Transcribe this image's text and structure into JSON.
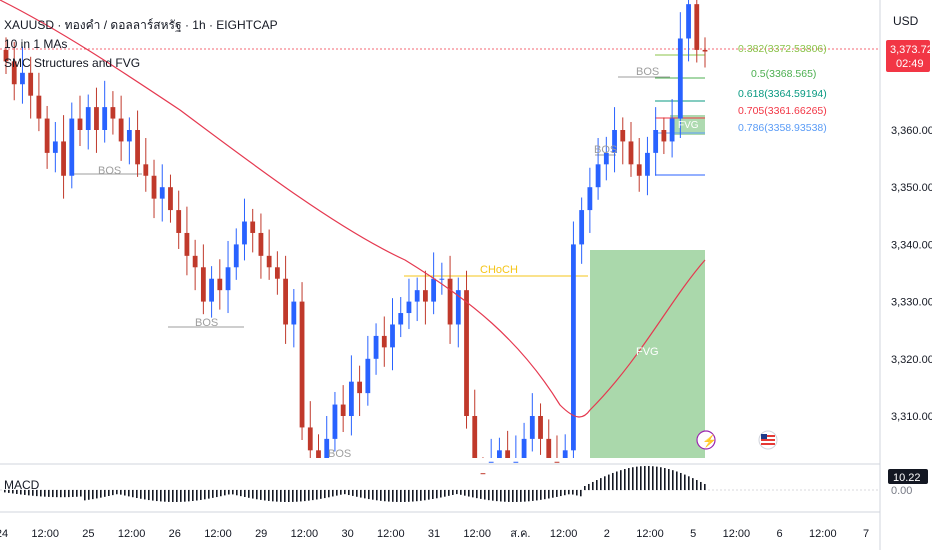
{
  "header": {
    "symbol_line": "XAUUSD · ทองคำ / ดอลลาร์สหรัฐ · 1h · EIGHTCAP",
    "indicator_1": "10 in 1 MAs",
    "indicator_2": "SMC Structures and FVG"
  },
  "price_axis": {
    "currency": "USD",
    "ticks": [
      "3,360.00",
      "3,350.00",
      "3,340.00",
      "3,330.00",
      "3,320.00",
      "3,310.00"
    ],
    "tick_values": [
      3360,
      3350,
      3340,
      3330,
      3320,
      3310
    ],
    "current_price": "3,373.72",
    "countdown": "02:49"
  },
  "time_axis": {
    "ticks": [
      "24",
      "12:00",
      "25",
      "12:00",
      "26",
      "12:00",
      "29",
      "12:00",
      "30",
      "12:00",
      "31",
      "12:00",
      "ส.ค.",
      "12:00",
      "2",
      "12:00",
      "5",
      "12:00",
      "6",
      "12:00",
      "7"
    ]
  },
  "macd": {
    "label": "MACD",
    "value": "10.22",
    "zero": "0.00"
  },
  "annotations": {
    "bos": "BOS",
    "choch": "CHoCH",
    "fvg": "FVG"
  },
  "fib_levels": [
    {
      "ratio": "0.382",
      "price": "3372.53806",
      "color": "#8bc34a"
    },
    {
      "ratio": "0.5",
      "price": "3368.565",
      "color": "#4caf50"
    },
    {
      "ratio": "0.618",
      "price": "3364.59194",
      "color": "#089981"
    },
    {
      "ratio": "0.705",
      "price": "3361.66265",
      "color": "#f23645"
    },
    {
      "ratio": "0.786",
      "price": "3358.93538",
      "color": "#5b9cf6"
    }
  ],
  "colors": {
    "up": "#2962ff",
    "down": "#c0392b",
    "ma": "#e53950",
    "fvg": "#a5d6a7",
    "choch": "#f5c518",
    "bos": "#9e9e9e",
    "price_badge": "#f23645"
  },
  "chart_data": {
    "type": "candlestick",
    "timeframe": "1h",
    "ylim": [
      3305,
      3378
    ],
    "y_ticks": [
      3310,
      3320,
      3330,
      3340,
      3350,
      3360
    ],
    "current_price": 3373.72,
    "candles_close": [
      3372,
      3368,
      3370,
      3366,
      3362,
      3356,
      3358,
      3352,
      3362,
      3360,
      3364,
      3360,
      3364,
      3362,
      3358,
      3360,
      3354,
      3352,
      3348,
      3350,
      3346,
      3342,
      3338,
      3336,
      3330,
      3334,
      3332,
      3336,
      3340,
      3344,
      3342,
      3338,
      3336,
      3334,
      3326,
      3330,
      3308,
      3304,
      3302,
      3306,
      3312,
      3310,
      3316,
      3314,
      3320,
      3324,
      3322,
      3326,
      3328,
      3330,
      3332,
      3330,
      3334,
      3334,
      3326,
      3332,
      3310,
      3300,
      3298,
      3302,
      3304,
      3300,
      3302,
      3306,
      3310,
      3306,
      3302,
      3300,
      3304,
      3340,
      3346,
      3350,
      3354,
      3356,
      3360,
      3358,
      3354,
      3352,
      3356,
      3360,
      3358,
      3362,
      3376,
      3382,
      3374,
      3373.72
    ]
  }
}
